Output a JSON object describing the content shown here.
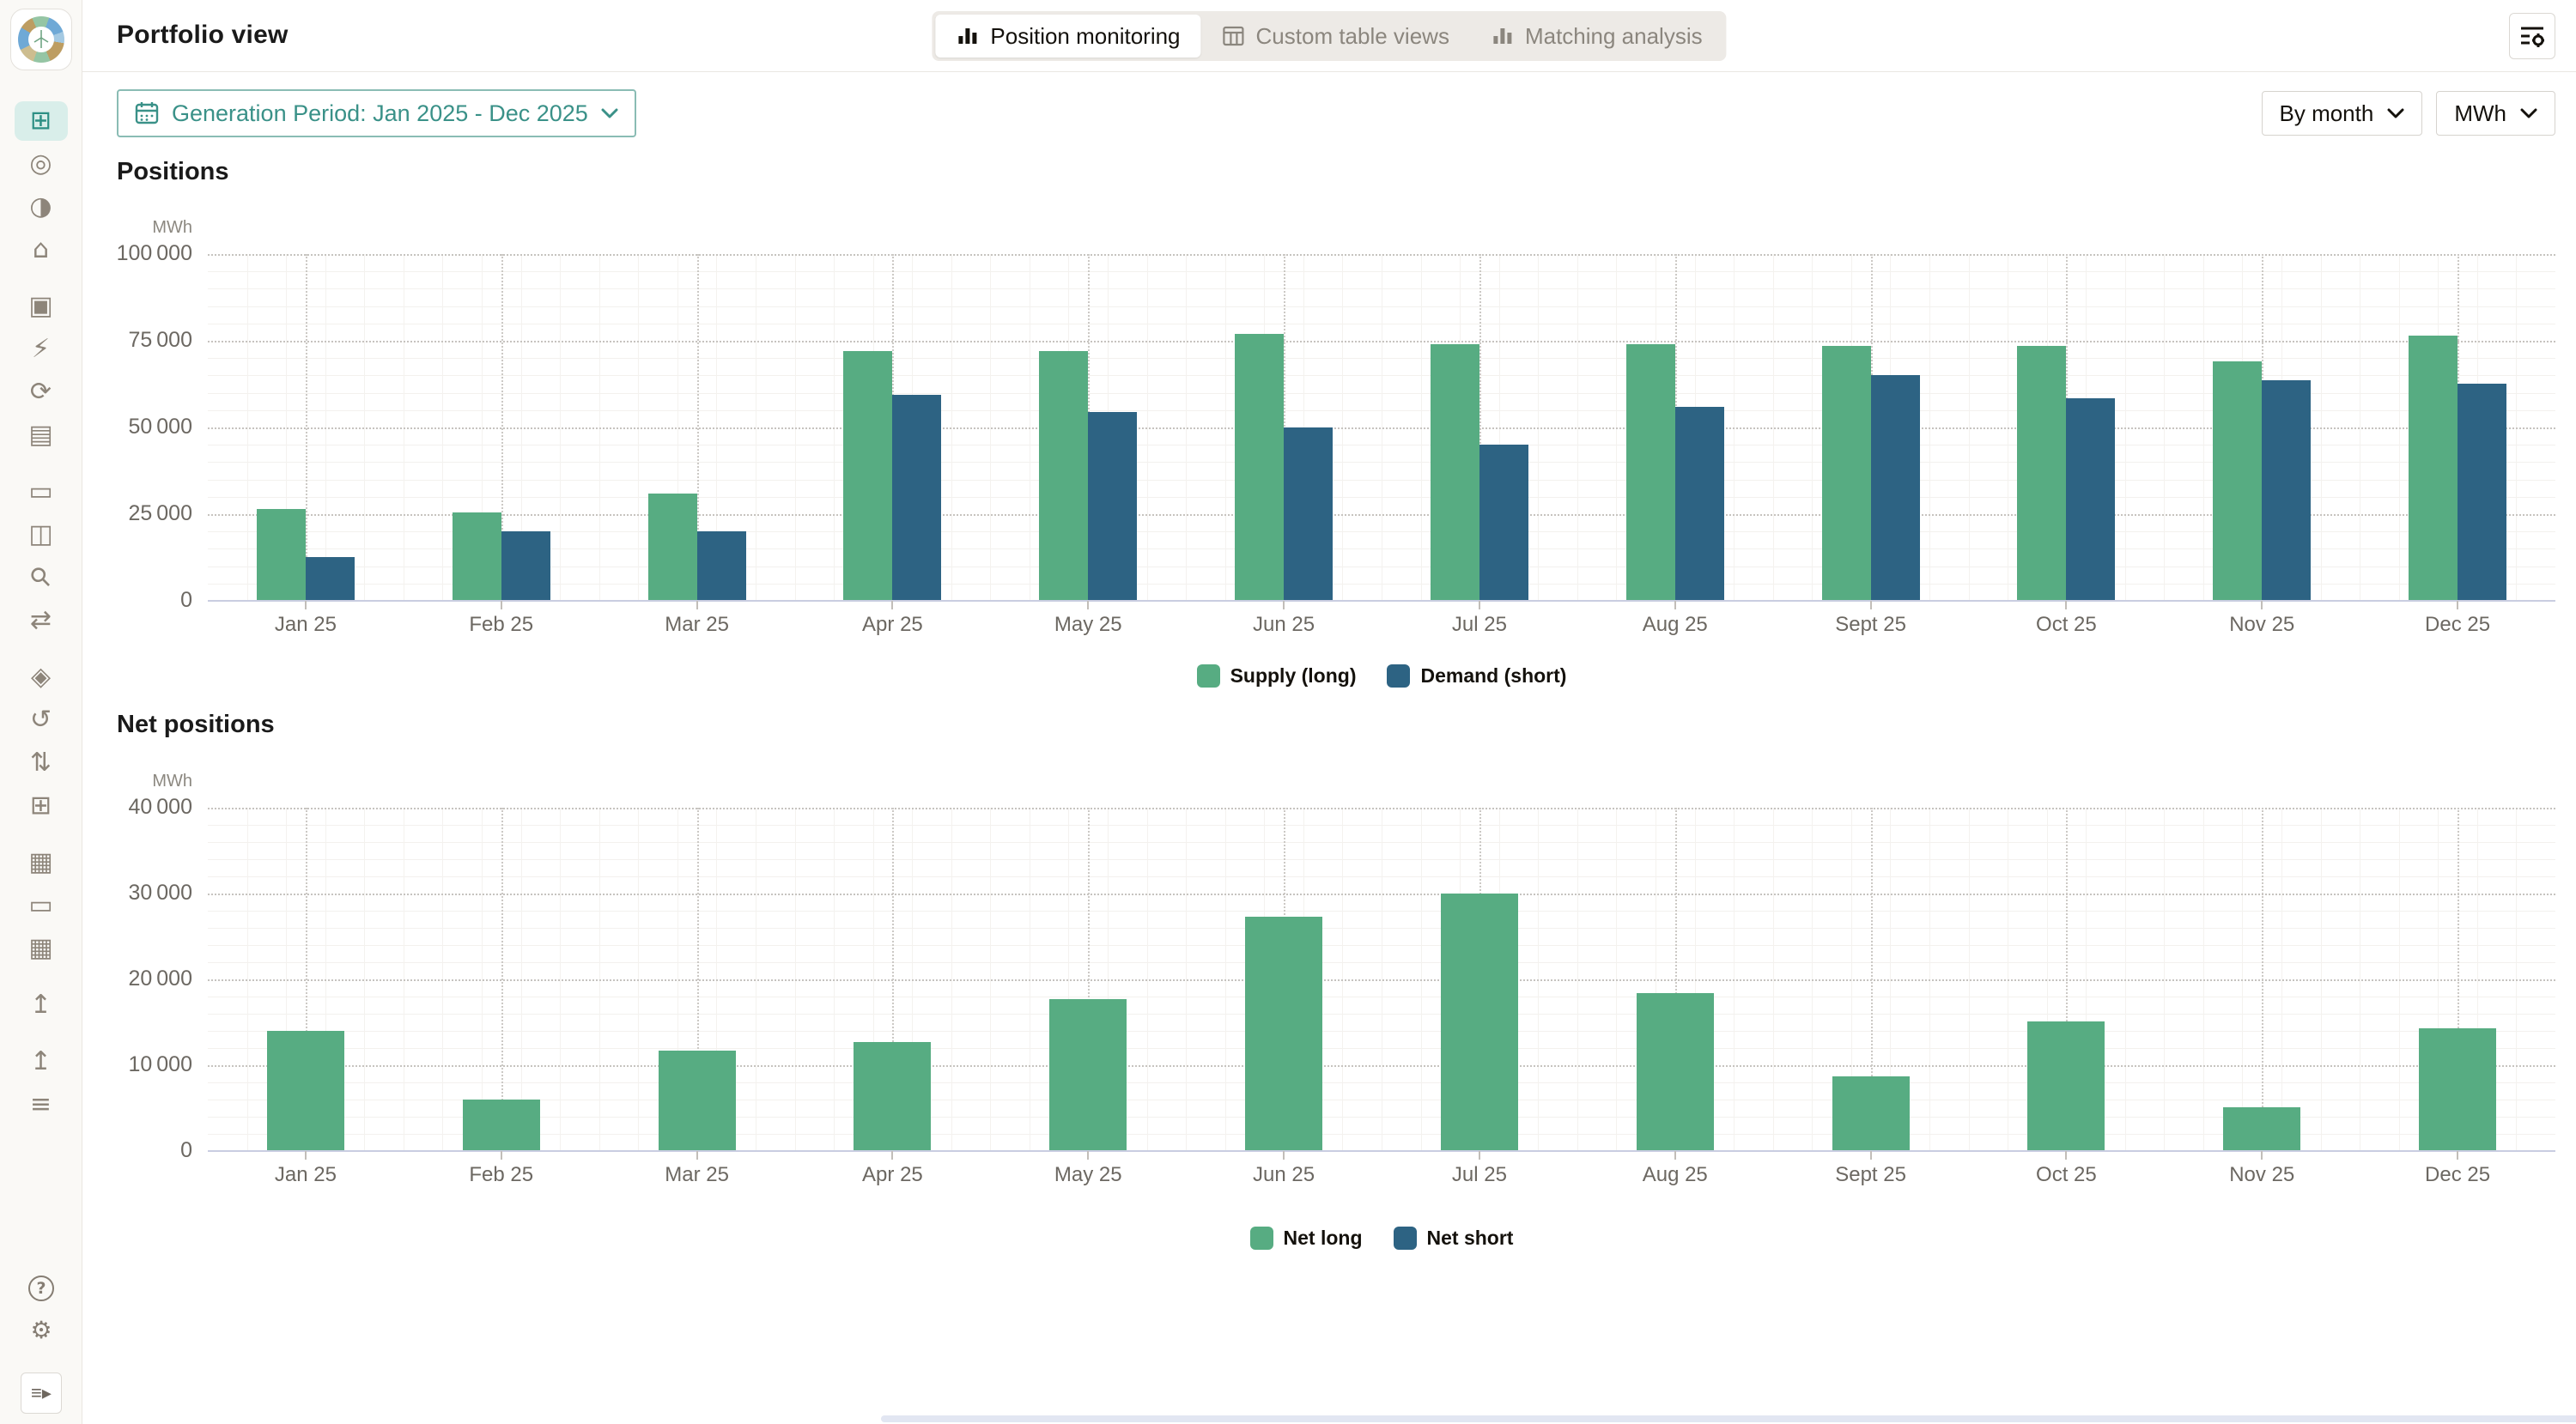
{
  "header": {
    "title": "Portfolio view",
    "tabs": [
      {
        "label": "Position monitoring",
        "icon": "bar-chart-icon",
        "active": true
      },
      {
        "label": "Custom table views",
        "icon": "table-icon",
        "active": false
      },
      {
        "label": "Matching analysis",
        "icon": "bar-chart-icon",
        "active": false
      }
    ],
    "filter_button_icon": "filter-settings-icon"
  },
  "controls": {
    "generation_period": {
      "icon": "calendar-icon",
      "label": "Generation Period: Jan 2025 - Dec 2025",
      "chevron": "chevron-down-icon"
    },
    "group_by": {
      "value": "By month"
    },
    "unit": {
      "value": "MWh"
    }
  },
  "sidebar": {
    "items": [
      {
        "name": "dashboard",
        "glyph": "⊞",
        "active": true
      },
      {
        "name": "target",
        "glyph": "◎",
        "active": false
      },
      {
        "name": "contrast-droplet",
        "glyph": "◑",
        "active": false
      },
      {
        "name": "building-chart",
        "glyph": "⌂",
        "active": false
      },
      {
        "name": "device-card",
        "glyph": "▣",
        "active": false
      },
      {
        "name": "energy-bolt",
        "glyph": "⚡",
        "active": false
      },
      {
        "name": "refresh-trend",
        "glyph": "⟳",
        "active": false
      },
      {
        "name": "report-document",
        "glyph": "▤",
        "active": false
      },
      {
        "name": "laptop",
        "glyph": "▭",
        "active": false
      },
      {
        "name": "contact-card",
        "glyph": "◫",
        "active": false
      },
      {
        "name": "search",
        "glyph": "⚲",
        "active": false
      },
      {
        "name": "transfer",
        "glyph": "⇄",
        "active": false
      },
      {
        "name": "layers",
        "glyph": "◈",
        "active": false
      },
      {
        "name": "history",
        "glyph": "↺",
        "active": false
      },
      {
        "name": "sliders",
        "glyph": "⇅",
        "active": false
      },
      {
        "name": "dashboard-alt",
        "glyph": "⊞",
        "active": false
      },
      {
        "name": "file-chart",
        "glyph": "▦",
        "active": false
      },
      {
        "name": "laptop-alt",
        "glyph": "▭",
        "active": false
      },
      {
        "name": "file-chart-alt",
        "glyph": "▦",
        "active": false
      },
      {
        "name": "upload",
        "glyph": "↥",
        "active": false
      },
      {
        "name": "upload-alt",
        "glyph": "↥",
        "active": false
      },
      {
        "name": "list-settings",
        "glyph": "≡",
        "active": false
      }
    ],
    "footer": [
      {
        "name": "help",
        "glyph": "?"
      },
      {
        "name": "settings",
        "glyph": "⚙"
      },
      {
        "name": "collapse-sidebar",
        "glyph": "≡▸"
      }
    ]
  },
  "chart_data": [
    {
      "id": "positions",
      "type": "bar",
      "title": "Positions",
      "ylabel": "MWh",
      "ylim": [
        0,
        100000
      ],
      "ytick_step": 25000,
      "minor_step": 5000,
      "grid": true,
      "legend_position": "bottom",
      "categories": [
        "Jan 25",
        "Feb 25",
        "Mar 25",
        "Apr 25",
        "May 25",
        "Jun 25",
        "Jul 25",
        "Aug 25",
        "Sept 25",
        "Oct 25",
        "Nov 25",
        "Dec 25"
      ],
      "series": [
        {
          "name": "Supply (long)",
          "color": "#57ac82",
          "values": [
            26500,
            25500,
            31000,
            72000,
            72000,
            77000,
            74000,
            74000,
            73500,
            73500,
            69000,
            76500
          ]
        },
        {
          "name": "Demand (short)",
          "color": "#2d6383",
          "values": [
            12500,
            20000,
            20000,
            59500,
            54500,
            50000,
            45000,
            56000,
            65000,
            58500,
            63500,
            62500
          ]
        }
      ],
      "legend": [
        {
          "label": "Supply (long)",
          "color": "#57ac82"
        },
        {
          "label": "Demand (short)",
          "color": "#2d6383"
        }
      ]
    },
    {
      "id": "net-positions",
      "type": "bar",
      "title": "Net positions",
      "ylabel": "MWh",
      "ylim": [
        0,
        40000
      ],
      "ytick_step": 10000,
      "minor_step": 2000,
      "grid": true,
      "legend_position": "bottom",
      "categories": [
        "Jan 25",
        "Feb 25",
        "Mar 25",
        "Apr 25",
        "May 25",
        "Jun 25",
        "Jul 25",
        "Aug 25",
        "Sept 25",
        "Oct 25",
        "Nov 25",
        "Dec 25"
      ],
      "series": [
        {
          "name": "Net long",
          "color": "#57ac82",
          "values": [
            14000,
            6000,
            11700,
            12700,
            17700,
            27300,
            30000,
            18400,
            8700,
            15100,
            5100,
            14300
          ]
        }
      ],
      "legend": [
        {
          "label": "Net long",
          "color": "#57ac82"
        },
        {
          "label": "Net short",
          "color": "#2d6383"
        }
      ]
    }
  ]
}
